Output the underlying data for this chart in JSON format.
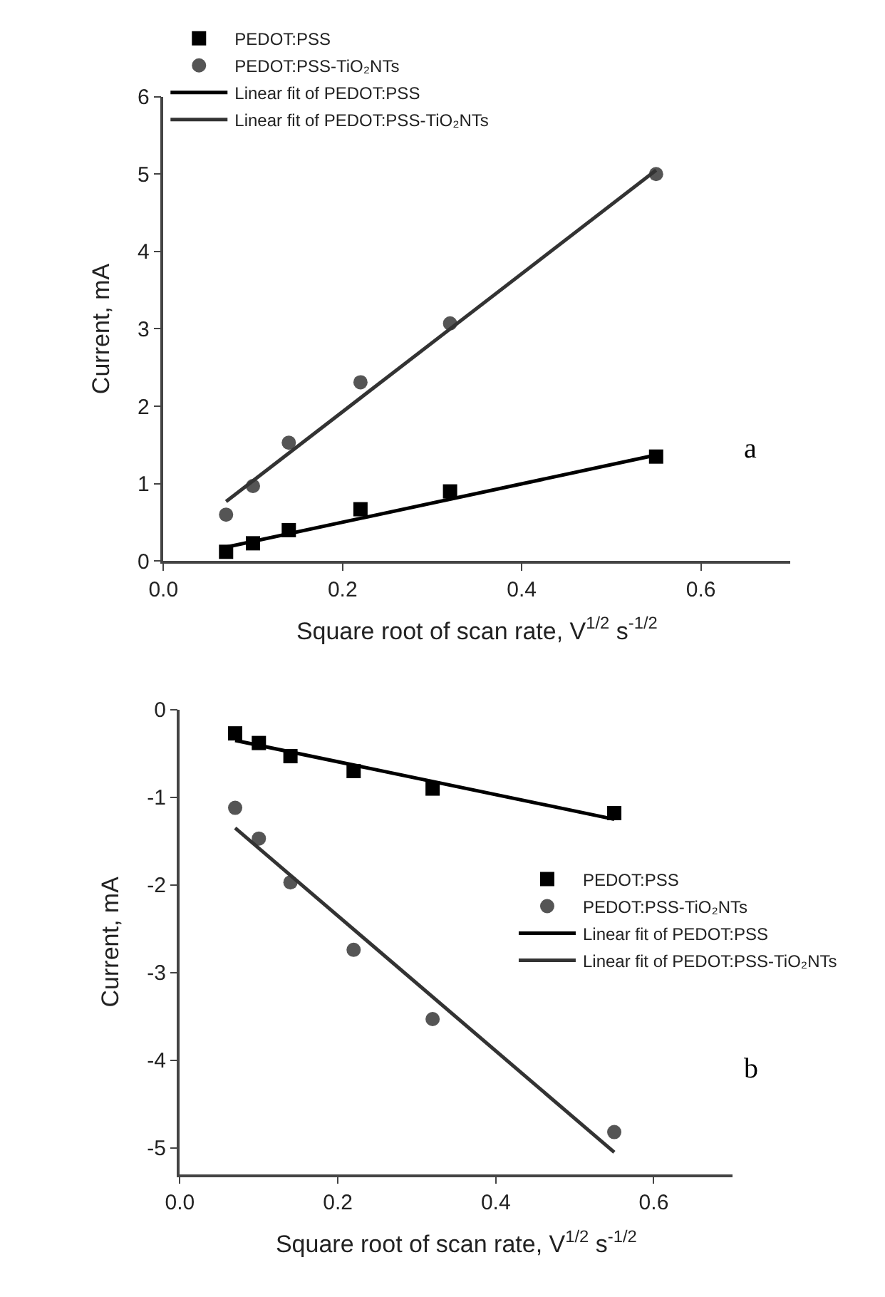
{
  "chart_data": [
    {
      "type": "scatter",
      "xlabel": "Square root of scan rate, V$^{1/2}$ s$^{-1/2}$",
      "ylabel": "Current, mA",
      "annotations": [
        "a"
      ],
      "xlim": [
        0,
        0.7
      ],
      "ylim": [
        0,
        6
      ],
      "xticks": [
        {
          "value": 0,
          "label": "0.0"
        },
        0.2,
        0.4,
        0.6
      ],
      "yticks": [
        0,
        1,
        2,
        3,
        4,
        5,
        6
      ],
      "legend": "top left",
      "series": [
        {
          "name": "PEDOT:PSS",
          "marker": "square",
          "color": "#000000",
          "x": [
            0.07,
            0.1,
            0.14,
            0.22,
            0.32,
            0.55
          ],
          "values": [
            0.12,
            0.23,
            0.4,
            0.67,
            0.9,
            1.35
          ]
        },
        {
          "name": "PEDOT:PSS-TiO₂NTs",
          "marker": "circle",
          "color": "#555555",
          "x": [
            0.07,
            0.1,
            0.14,
            0.22,
            0.32,
            0.55
          ],
          "values": [
            0.6,
            0.97,
            1.53,
            2.31,
            3.07,
            5.0
          ]
        },
        {
          "name": "Linear fit of PEDOT:PSS",
          "type": "line",
          "marker": "none",
          "color": "#000000",
          "x": [
            0.07,
            0.55
          ],
          "values": [
            0.18,
            1.37
          ]
        },
        {
          "name": "Linear fit of PEDOT:PSS-TiO₂NTs",
          "type": "line",
          "marker": "none",
          "color": "#333333",
          "x": [
            0.07,
            0.55
          ],
          "values": [
            0.77,
            5.05
          ]
        }
      ]
    },
    {
      "type": "scatter",
      "xlabel": "Square root of scan rate, V$^{1/2}$ s$^{-1/2}$",
      "ylabel": "Current, mA",
      "annotations": [
        "b"
      ],
      "xlim": [
        0,
        0.7
      ],
      "ylim": [
        -5.3,
        0
      ],
      "xticks": [
        {
          "value": 0,
          "label": "0.0"
        },
        0.2,
        0.4,
        0.6
      ],
      "yticks": [
        -5,
        -4,
        -3,
        -2,
        -1,
        0
      ],
      "legend": "right",
      "series": [
        {
          "name": "PEDOT:PSS",
          "marker": "square",
          "color": "#000000",
          "x": [
            0.07,
            0.1,
            0.14,
            0.22,
            0.32,
            0.55
          ],
          "values": [
            -0.27,
            -0.38,
            -0.53,
            -0.7,
            -0.9,
            -1.18
          ]
        },
        {
          "name": "PEDOT:PSS-TiO₂NTs",
          "marker": "circle",
          "color": "#555555",
          "x": [
            0.07,
            0.1,
            0.14,
            0.22,
            0.32,
            0.55
          ],
          "values": [
            -1.12,
            -1.47,
            -1.97,
            -2.74,
            -3.53,
            -4.82
          ]
        },
        {
          "name": "Linear fit of PEDOT:PSS",
          "type": "line",
          "marker": "none",
          "color": "#000000",
          "x": [
            0.07,
            0.55
          ],
          "values": [
            -0.35,
            -1.25
          ]
        },
        {
          "name": "Linear fit of PEDOT:PSS-TiO₂NTs",
          "type": "line",
          "marker": "none",
          "color": "#333333",
          "x": [
            0.07,
            0.55
          ],
          "values": [
            -1.35,
            -5.05
          ]
        }
      ]
    }
  ]
}
